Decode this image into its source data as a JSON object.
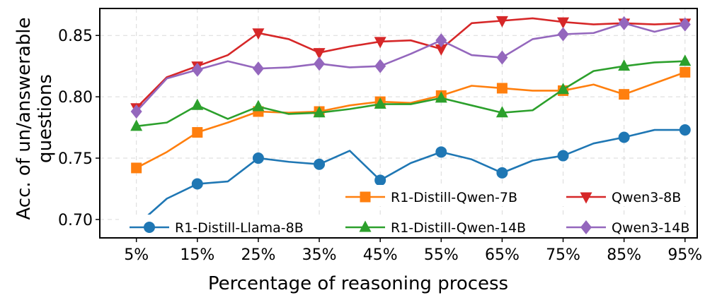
{
  "chart_data": {
    "type": "line",
    "title": "",
    "xlabel": "Percentage of reasoning process",
    "ylabel": "Acc. of un/answerable questions",
    "ylabel_lines": [
      "Acc. of un/answerable",
      "questions"
    ],
    "x": [
      5,
      10,
      15,
      20,
      25,
      30,
      35,
      40,
      45,
      50,
      55,
      60,
      65,
      70,
      75,
      80,
      85,
      90,
      95
    ],
    "xlim": [
      -1,
      97
    ],
    "ylim": [
      0.685,
      0.872
    ],
    "xticks": [
      5,
      15,
      25,
      35,
      45,
      55,
      65,
      75,
      85,
      95
    ],
    "xtick_labels": [
      "5%",
      "15%",
      "25%",
      "35%",
      "45%",
      "55%",
      "65%",
      "75%",
      "85%",
      "95%"
    ],
    "yticks": [
      0.7,
      0.75,
      0.8,
      0.85
    ],
    "ytick_labels": [
      "0.70",
      "0.75",
      "0.80",
      "0.85"
    ],
    "grid": true,
    "legend_location": "bottom-right",
    "series": [
      {
        "name": "R1-Distill-Qwen-7B",
        "color": "#ff7f0e",
        "marker": "square",
        "marker_every": 2,
        "values": [
          0.742,
          0.755,
          0.771,
          0.779,
          0.788,
          0.787,
          0.788,
          0.793,
          0.796,
          0.795,
          0.801,
          0.809,
          0.807,
          0.805,
          0.805,
          0.81,
          0.802,
          0.811,
          0.82
        ]
      },
      {
        "name": "Qwen3-8B",
        "color": "#d62728",
        "marker": "triangle-down",
        "marker_every": 2,
        "values": [
          0.791,
          0.816,
          0.825,
          0.834,
          0.852,
          0.847,
          0.836,
          0.841,
          0.845,
          0.846,
          0.839,
          0.86,
          0.862,
          0.864,
          0.861,
          0.859,
          0.86,
          0.859,
          0.86
        ]
      },
      {
        "name": "R1-Distill-Llama-8B",
        "color": "#1f77b4",
        "marker": "circle",
        "marker_every": 2,
        "values": [
          0.695,
          0.717,
          0.729,
          0.731,
          0.75,
          0.747,
          0.745,
          0.756,
          0.732,
          0.746,
          0.755,
          0.749,
          0.738,
          0.748,
          0.752,
          0.762,
          0.767,
          0.773,
          0.773
        ]
      },
      {
        "name": "R1-Distill-Qwen-14B",
        "color": "#2ca02c",
        "marker": "triangle-up",
        "marker_every": 2,
        "values": [
          0.776,
          0.779,
          0.793,
          0.782,
          0.792,
          0.786,
          0.787,
          0.79,
          0.794,
          0.794,
          0.799,
          0.793,
          0.787,
          0.789,
          0.806,
          0.821,
          0.825,
          0.828,
          0.829
        ]
      },
      {
        "name": "Qwen3-14B",
        "color": "#9467bd",
        "marker": "diamond",
        "marker_every": 2,
        "values": [
          0.788,
          0.815,
          0.822,
          0.829,
          0.823,
          0.824,
          0.827,
          0.824,
          0.825,
          0.835,
          0.846,
          0.834,
          0.832,
          0.847,
          0.851,
          0.852,
          0.86,
          0.853,
          0.859
        ]
      }
    ]
  }
}
